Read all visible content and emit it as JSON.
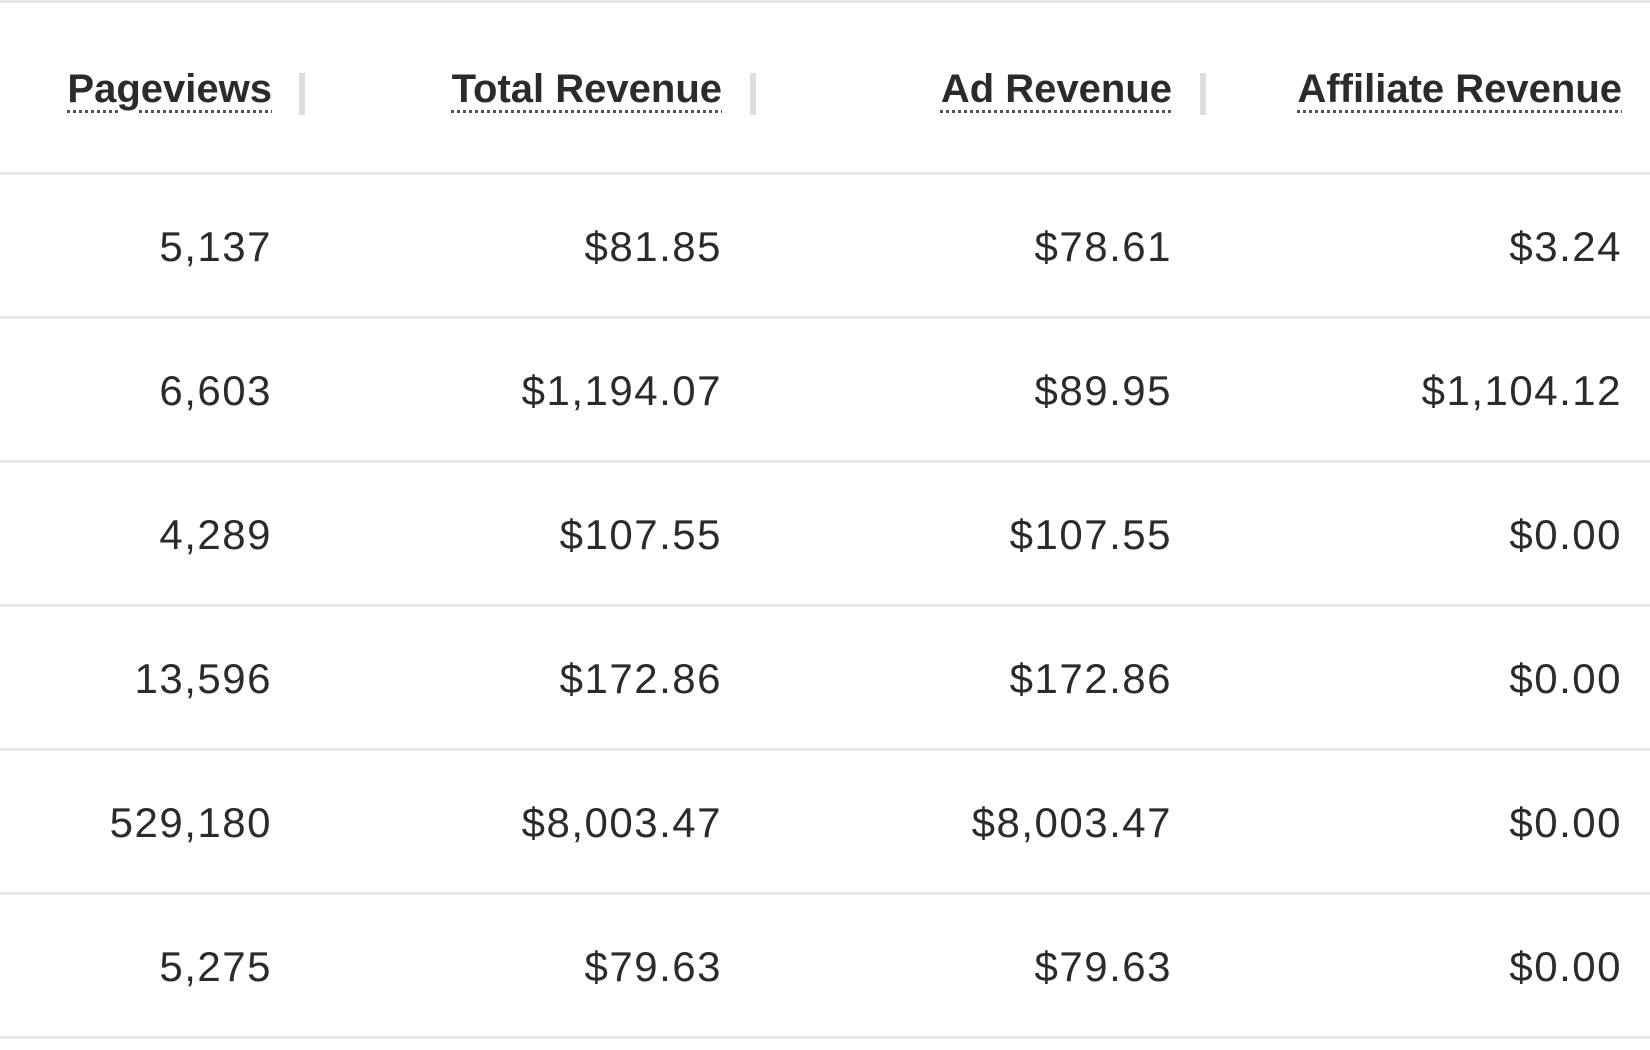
{
  "table": {
    "columns": [
      {
        "label": "Pageviews"
      },
      {
        "label": "Total Revenue"
      },
      {
        "label": "Ad Revenue"
      },
      {
        "label": "Affiliate Revenue"
      }
    ],
    "rows": [
      [
        "5,137",
        "$81.85",
        "$78.61",
        "$3.24"
      ],
      [
        "6,603",
        "$1,194.07",
        "$89.95",
        "$1,104.12"
      ],
      [
        "4,289",
        "$107.55",
        "$107.55",
        "$0.00"
      ],
      [
        "13,596",
        "$172.86",
        "$172.86",
        "$0.00"
      ],
      [
        "529,180",
        "$8,003.47",
        "$8,003.47",
        "$0.00"
      ],
      [
        "5,275",
        "$79.63",
        "$79.63",
        "$0.00"
      ]
    ]
  },
  "colors": {
    "text": "#2b2b2b",
    "border": "#e6e6e6",
    "separator": "#dddddd",
    "background": "#ffffff"
  }
}
